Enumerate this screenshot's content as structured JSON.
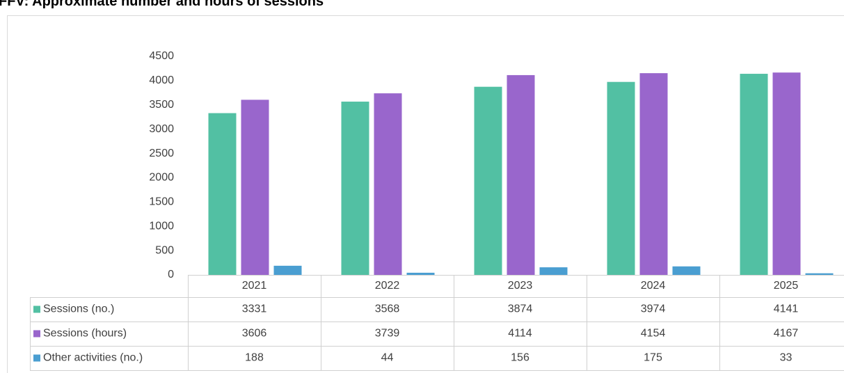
{
  "chart_data": {
    "type": "bar",
    "title": "FFV: Approximate number and hours of sessions",
    "categories": [
      "2021",
      "2022",
      "2023",
      "2024",
      "2025"
    ],
    "series": [
      {
        "name": "Sessions (no.)",
        "color": "#52c0a3",
        "values": [
          3331,
          3568,
          3874,
          3974,
          4141
        ]
      },
      {
        "name": "Sessions (hours)",
        "color": "#9966cc",
        "values": [
          3606,
          3739,
          4114,
          4154,
          4167
        ]
      },
      {
        "name": "Other activities (no.)",
        "color": "#4a9ed1",
        "values": [
          188,
          44,
          156,
          175,
          33
        ]
      }
    ],
    "ylim": [
      0,
      4500
    ],
    "yticks": [
      0,
      500,
      1000,
      1500,
      2000,
      2500,
      3000,
      3500,
      4000,
      4500
    ],
    "grid": false
  }
}
